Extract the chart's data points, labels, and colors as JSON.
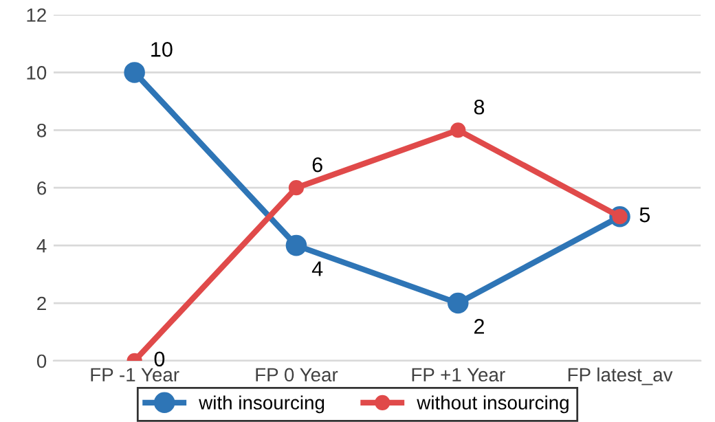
{
  "chart_data": {
    "type": "line",
    "categories": [
      "FP -1 Year",
      "FP 0 Year",
      "FP +1 Year",
      "FP latest_av"
    ],
    "series": [
      {
        "name": "with insourcing",
        "color": "#2e75b6",
        "values": [
          10,
          4,
          2,
          5
        ],
        "value_labels": [
          "10",
          "4",
          "2",
          null
        ]
      },
      {
        "name": "without insourcing",
        "color": "#e04a4a",
        "values": [
          0,
          6,
          8,
          5
        ],
        "value_labels": [
          "0",
          "6",
          "8",
          "5"
        ]
      }
    ],
    "ylim": [
      0,
      12
    ],
    "yticks": [
      0,
      2,
      4,
      6,
      8,
      10,
      12
    ],
    "grid": "y",
    "legend": "bottom",
    "marker": "circle",
    "line_style": "solid"
  }
}
